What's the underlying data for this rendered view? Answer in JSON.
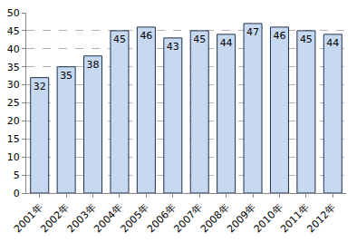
{
  "chart_data": {
    "type": "bar",
    "categories": [
      "2001年",
      "2002年",
      "2003年",
      "2004年",
      "2005年",
      "2006年",
      "2007年",
      "2008年",
      "2009年",
      "2010年",
      "2011年",
      "2012年"
    ],
    "values": [
      32,
      35,
      38,
      45,
      46,
      43,
      45,
      44,
      47,
      46,
      45,
      44
    ],
    "color": "#c6d9f1",
    "ylim": [
      0,
      50
    ],
    "yticks": [
      0,
      5,
      10,
      15,
      20,
      25,
      30,
      35,
      40,
      45,
      50
    ],
    "grid": true,
    "data_labels": true
  }
}
